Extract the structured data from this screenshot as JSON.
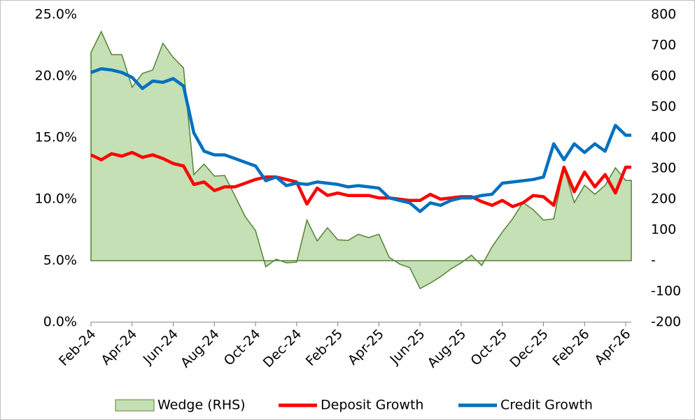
{
  "chart_data": {
    "type": "line",
    "categories": [
      "Feb-24",
      null,
      null,
      null,
      "Apr-24",
      null,
      null,
      null,
      "Jun-24",
      null,
      null,
      null,
      "Aug-24",
      null,
      null,
      null,
      "Oct-24",
      null,
      null,
      null,
      "Dec-24",
      null,
      null,
      null,
      "Feb-25",
      null,
      null,
      null,
      "Apr-25",
      null,
      null,
      null,
      "Jun-25",
      null,
      null,
      null,
      "Aug-25",
      null,
      null,
      null,
      "Oct-25",
      null,
      null,
      null,
      "Dec-25",
      null,
      null,
      null,
      "Feb-26",
      null,
      null,
      null,
      "Apr-26"
    ],
    "series": [
      {
        "name": "Wedge (RHS)",
        "type": "area",
        "axis": "y2",
        "color": "#c5e0b4",
        "line_color": "#548235",
        "values": [
          677,
          745,
          670,
          670,
          564,
          609,
          620,
          707,
          661,
          627,
          280,
          314,
          275,
          277,
          211,
          143,
          98,
          -20,
          5,
          -7,
          -5,
          132,
          64,
          107,
          68,
          66,
          86,
          75,
          86,
          11,
          -11,
          -23,
          -91,
          -73,
          -52,
          -27,
          -7,
          18,
          -16,
          45,
          93,
          136,
          189,
          166,
          132,
          136,
          302,
          189,
          245,
          216,
          245,
          302,
          261
        ]
      },
      {
        "name": "Deposit Growth",
        "color": "#ff0000",
        "values": [
          13.6,
          13.2,
          13.7,
          13.5,
          13.8,
          13.4,
          13.6,
          13.3,
          12.9,
          12.7,
          11.2,
          11.4,
          10.7,
          11.0,
          11.0,
          11.3,
          11.6,
          11.8,
          11.8,
          11.6,
          11.4,
          9.6,
          10.9,
          10.3,
          10.5,
          10.3,
          10.3,
          10.3,
          10.1,
          10.1,
          10.0,
          9.9,
          9.9,
          10.4,
          10.0,
          10.1,
          10.2,
          10.2,
          9.8,
          9.5,
          9.9,
          9.4,
          9.7,
          10.3,
          10.2,
          9.5,
          12.6,
          10.6,
          12.2,
          11.0,
          12.0,
          10.5,
          12.6
        ]
      },
      {
        "name": "Credit Growth",
        "color": "#0070c0",
        "values": [
          20.3,
          20.6,
          20.5,
          20.3,
          19.9,
          19.0,
          19.6,
          19.5,
          19.8,
          19.2,
          15.4,
          13.9,
          13.6,
          13.6,
          13.3,
          13.0,
          12.7,
          11.5,
          11.8,
          11.1,
          11.3,
          11.2,
          11.4,
          11.3,
          11.2,
          11.0,
          11.1,
          11.0,
          10.9,
          10.1,
          9.9,
          9.7,
          9.0,
          9.7,
          9.5,
          9.9,
          10.1,
          10.1,
          10.3,
          10.4,
          11.3,
          11.4,
          11.5,
          11.6,
          11.8,
          14.5,
          13.2,
          14.5,
          13.8,
          14.5,
          13.9,
          16.0,
          15.2
        ]
      }
    ],
    "ylim": [
      0,
      25
    ],
    "yticks": [
      {
        "value": 0,
        "label": "0.0%"
      },
      {
        "value": 5,
        "label": "5.0%"
      },
      {
        "value": 10,
        "label": "10.0%"
      },
      {
        "value": 15,
        "label": "15.0%"
      },
      {
        "value": 20,
        "label": "20.0%"
      },
      {
        "value": 25,
        "label": "25.0%"
      }
    ],
    "y2lim": [
      -200,
      800
    ],
    "y2ticks": [
      -200,
      -100,
      {
        "value": 0,
        "label": "-"
      },
      100,
      200,
      300,
      400,
      500,
      600,
      700,
      800
    ],
    "legend": "bottom"
  }
}
